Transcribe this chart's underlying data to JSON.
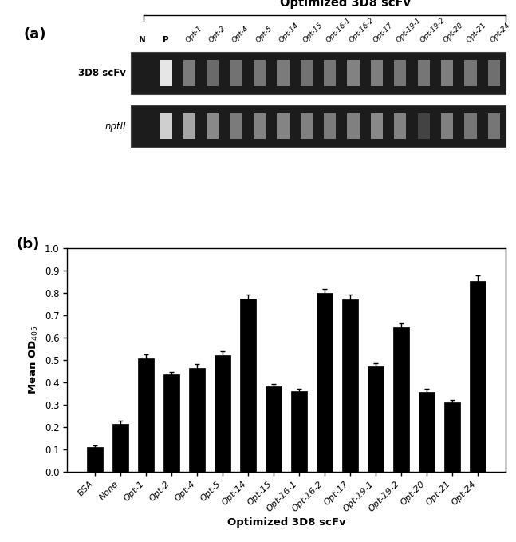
{
  "panel_a": {
    "title": "Optimized 3D8 scFv",
    "label_a": "(a)",
    "gel_labels": [
      "3D8 scFv",
      "nptII"
    ],
    "lane_labels_top": [
      "N",
      "P",
      "Opt-1",
      "Opt-2",
      "Opt-4",
      "Opt-5",
      "Opt-14",
      "Opt-15",
      "Opt-16-1",
      "Opt-16-2",
      "Opt-17",
      "Opt-19-1",
      "Opt-19-2",
      "Opt-20",
      "Opt-21",
      "Opt-24"
    ]
  },
  "panel_b": {
    "label_b": "(b)",
    "categories": [
      "BSA",
      "None",
      "Opt-1",
      "Opt-2",
      "Opt-4",
      "Opt-5",
      "Opt-14",
      "Opt-15",
      "Opt-16-1",
      "Opt-16-2",
      "Opt-17",
      "Opt-19-1",
      "Opt-19-2",
      "Opt-20",
      "Opt-21",
      "Opt-24"
    ],
    "values": [
      0.11,
      0.215,
      0.505,
      0.435,
      0.465,
      0.52,
      0.775,
      0.38,
      0.36,
      0.8,
      0.77,
      0.47,
      0.645,
      0.355,
      0.31,
      0.855
    ],
    "errors": [
      0.008,
      0.012,
      0.018,
      0.012,
      0.015,
      0.018,
      0.018,
      0.012,
      0.012,
      0.018,
      0.022,
      0.015,
      0.018,
      0.015,
      0.012,
      0.022
    ],
    "bar_color": "#000000",
    "ylabel": "Mean OD$_{405}$",
    "xlabel": "Optimized 3D8 scFv",
    "ylim": [
      0,
      1.0
    ],
    "yticks": [
      0,
      0.1,
      0.2,
      0.3,
      0.4,
      0.5,
      0.6,
      0.7,
      0.8,
      0.9,
      1
    ]
  },
  "band1_brightness": [
    0.0,
    0.98,
    0.52,
    0.45,
    0.48,
    0.5,
    0.52,
    0.48,
    0.5,
    0.55,
    0.53,
    0.5,
    0.5,
    0.53,
    0.5,
    0.47
  ],
  "band2_brightness": [
    0.0,
    0.88,
    0.7,
    0.58,
    0.52,
    0.55,
    0.56,
    0.54,
    0.52,
    0.54,
    0.58,
    0.55,
    0.28,
    0.54,
    0.5,
    0.5
  ],
  "bg_color": "#ffffff"
}
